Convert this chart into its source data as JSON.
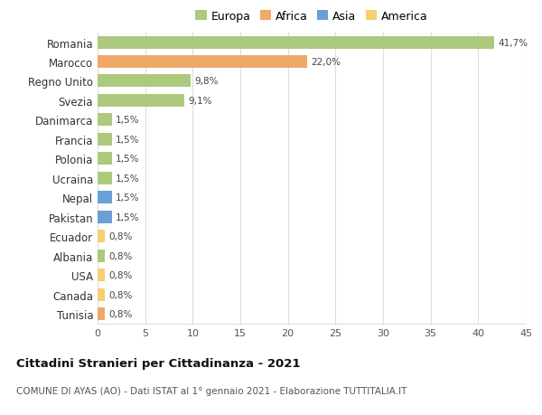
{
  "countries": [
    "Romania",
    "Marocco",
    "Regno Unito",
    "Svezia",
    "Danimarca",
    "Francia",
    "Polonia",
    "Ucraina",
    "Nepal",
    "Pakistan",
    "Ecuador",
    "Albania",
    "USA",
    "Canada",
    "Tunisia"
  ],
  "values": [
    41.7,
    22.0,
    9.8,
    9.1,
    1.5,
    1.5,
    1.5,
    1.5,
    1.5,
    1.5,
    0.8,
    0.8,
    0.8,
    0.8,
    0.8
  ],
  "labels": [
    "41,7%",
    "22,0%",
    "9,8%",
    "9,1%",
    "1,5%",
    "1,5%",
    "1,5%",
    "1,5%",
    "1,5%",
    "1,5%",
    "0,8%",
    "0,8%",
    "0,8%",
    "0,8%",
    "0,8%"
  ],
  "continents": [
    "Europa",
    "Africa",
    "Europa",
    "Europa",
    "Europa",
    "Europa",
    "Europa",
    "Europa",
    "Asia",
    "Asia",
    "America",
    "Europa",
    "America",
    "America",
    "Africa"
  ],
  "colors": {
    "Europa": "#adc97e",
    "Africa": "#f0a868",
    "Asia": "#6a9fd8",
    "America": "#f5d06e"
  },
  "xlim": [
    0,
    45
  ],
  "xticks": [
    0,
    5,
    10,
    15,
    20,
    25,
    30,
    35,
    40,
    45
  ],
  "title": "Cittadini Stranieri per Cittadinanza - 2021",
  "subtitle": "COMUNE DI AYAS (AO) - Dati ISTAT al 1° gennaio 2021 - Elaborazione TUTTITALIA.IT",
  "bg_color": "#ffffff",
  "grid_color": "#dddddd"
}
